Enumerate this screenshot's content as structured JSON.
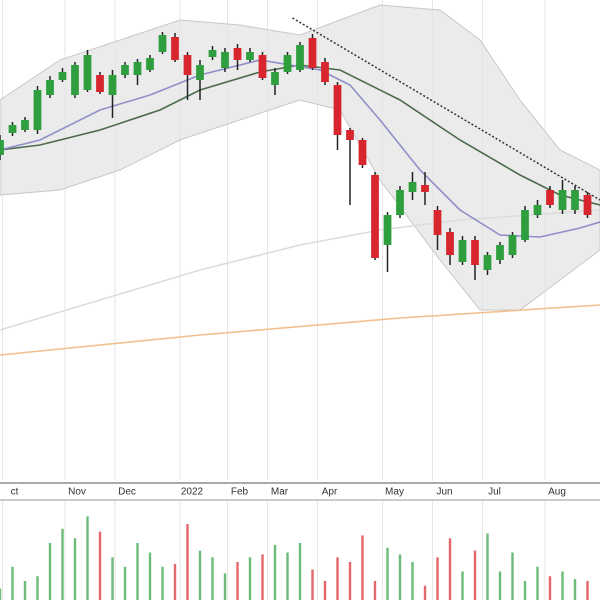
{
  "chart_data": {
    "type": "candlestick",
    "xlim": [
      0,
      48
    ],
    "xticks": [
      {
        "value": 0.2,
        "label": "ct"
      },
      {
        "value": 5.2,
        "label": "Nov"
      },
      {
        "value": 9.2,
        "label": "Dec"
      },
      {
        "value": 14.4,
        "label": "2022"
      },
      {
        "value": 18.2,
        "label": "Feb"
      },
      {
        "value": 21.4,
        "label": "Mar"
      },
      {
        "value": 25.4,
        "label": "Apr"
      },
      {
        "value": 30.6,
        "label": "May"
      },
      {
        "value": 34.6,
        "label": "Jun"
      },
      {
        "value": 38.6,
        "label": "Jul"
      },
      {
        "value": 43.6,
        "label": "Aug"
      }
    ],
    "ylim": [
      0,
      120
    ],
    "grid": true,
    "up_color": "#2e9e3e",
    "down_color": "#d8262e",
    "open": [
      81.25,
      86.75,
      87.5,
      87.5,
      96.25,
      100,
      96.25,
      97.5,
      101.25,
      96.25,
      101.25,
      101.25,
      102.5,
      107,
      110.75,
      106.25,
      100,
      105.75,
      103,
      108,
      105,
      106.25,
      98.75,
      102,
      102.5,
      110.5,
      104.5,
      98.75,
      87.5,
      85,
      76.25,
      58.75,
      66.25,
      72,
      73.75,
      67.5,
      62,
      54.5,
      60,
      52.5,
      55,
      56.25,
      60,
      66.25,
      72.5,
      67.5,
      67.5,
      71.25
    ],
    "high": [
      86.25,
      89.5,
      90.75,
      98.5,
      101,
      103,
      104.5,
      107.5,
      102,
      102.5,
      104.5,
      105.25,
      106.25,
      112,
      111.75,
      107,
      105,
      108.5,
      108,
      109,
      108,
      107,
      103,
      107,
      109.5,
      111.5,
      105.5,
      99.5,
      88,
      85.5,
      77,
      67,
      73.5,
      77,
      77,
      68.5,
      63,
      61,
      61,
      57,
      59.5,
      62,
      68.5,
      70,
      73.5,
      75,
      73.5,
      72
    ],
    "low": [
      80,
      86,
      87,
      86.5,
      95.5,
      99.5,
      95.5,
      97,
      96.5,
      90.5,
      100.5,
      98.75,
      102,
      106.5,
      104.5,
      95,
      95,
      105,
      102,
      102.5,
      104.5,
      100,
      96.25,
      101.5,
      102,
      102.5,
      98.75,
      82.5,
      68.75,
      78,
      55,
      52,
      65.5,
      70,
      68.75,
      57.5,
      53.75,
      53.75,
      50,
      51.25,
      54,
      55.5,
      59.5,
      65.5,
      68,
      66.5,
      66.5,
      65.5
    ],
    "close": [
      85,
      88.75,
      90,
      97.5,
      100,
      102,
      103.75,
      106.25,
      97,
      101.25,
      103.75,
      104.5,
      105.5,
      111.25,
      105,
      101.25,
      103.75,
      107.5,
      107,
      105,
      107,
      100.5,
      102,
      106.25,
      108.75,
      103,
      99.5,
      86.25,
      85,
      78.75,
      55.5,
      66.25,
      72.5,
      74.5,
      72,
      61.25,
      56.25,
      60,
      53.75,
      56.25,
      58.75,
      61.25,
      67.5,
      68.75,
      68.75,
      72.5,
      72.5,
      66.25
    ],
    "volume": {
      "ylim": [
        0,
        100
      ],
      "values": [
        12,
        35,
        20,
        25,
        60,
        75,
        65,
        88,
        72,
        45,
        35,
        60,
        50,
        35,
        38,
        80,
        52,
        45,
        28,
        40,
        45,
        48,
        58,
        50,
        60,
        32,
        20,
        45,
        40,
        68,
        20,
        55,
        48,
        40,
        15,
        45,
        65,
        30,
        52,
        70,
        30,
        50,
        20,
        35,
        25,
        30,
        22,
        20
      ]
    },
    "band": {
      "color": "#e4e4e4",
      "x": [
        0,
        4.8,
        9.6,
        14.4,
        19.2,
        24,
        27.2,
        30.4,
        35.2,
        38.4,
        41.6,
        44.8,
        48
      ],
      "upper": [
        95,
        105,
        110,
        115,
        113.75,
        111.25,
        115,
        118.75,
        117.5,
        110,
        95,
        82.5,
        77.5
      ],
      "lower": [
        71.25,
        72.5,
        77.5,
        85,
        90,
        95,
        92.5,
        75,
        55,
        42.5,
        42.5,
        50,
        57.5
      ]
    },
    "series": [
      {
        "color": "#f2c08e",
        "x": [
          0,
          16,
          32,
          48
        ],
        "values": [
          31.25,
          36.25,
          40.5,
          43.75
        ]
      },
      {
        "color": "#dcdcdc",
        "x": [
          0,
          8,
          16,
          24,
          30.4,
          36.8,
          48
        ],
        "values": [
          37.5,
          45,
          52.5,
          58.75,
          62.5,
          65,
          67.5
        ]
      },
      {
        "color": "#4c6b4c",
        "x": [
          0,
          3.2,
          8,
          12.8,
          16,
          20.8,
          24,
          27.2,
          32,
          36.8,
          41.6,
          44.8,
          48
        ],
        "values": [
          82.5,
          83.75,
          87.5,
          92.5,
          97.5,
          102,
          103.75,
          102.5,
          95,
          85,
          76.25,
          71.25,
          68.75
        ]
      },
      {
        "color": "#8f8fc8",
        "x": [
          0,
          3.2,
          8,
          12,
          16,
          20.8,
          25.6,
          28,
          30.4,
          33.6,
          36.8,
          40,
          43.2,
          46.4,
          48
        ],
        "values": [
          82.5,
          85,
          92.5,
          96.25,
          101.25,
          105,
          102.5,
          98.75,
          90,
          77.5,
          67.5,
          61.25,
          60.75,
          63,
          64.5
        ]
      },
      {
        "color": "#333333",
        "dashed": true,
        "x": [
          23.4,
          48
        ],
        "values": [
          115.5,
          70
        ]
      }
    ]
  }
}
